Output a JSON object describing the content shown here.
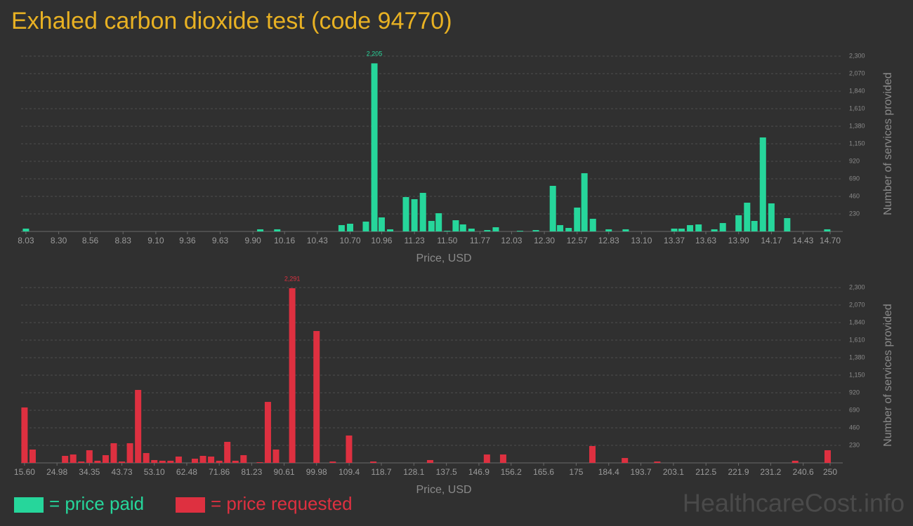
{
  "title": "Exhaled carbon dioxide test (code 94770)",
  "watermark": "HealthcareCost.info",
  "chart_data": [
    {
      "type": "bar",
      "x": [
        8.03,
        9.96,
        10.1,
        10.63,
        10.7,
        10.83,
        10.9,
        10.96,
        11.03,
        11.16,
        11.23,
        11.3,
        11.37,
        11.43,
        11.5,
        11.57,
        11.63,
        11.7,
        11.83,
        11.9,
        12.1,
        12.23,
        12.37,
        12.43,
        12.5,
        12.57,
        12.63,
        12.7,
        12.83,
        12.97,
        13.37,
        13.43,
        13.5,
        13.57,
        13.7,
        13.77,
        13.9,
        13.97,
        14.03,
        14.1,
        14.17,
        14.3,
        14.63
      ],
      "series": [
        {
          "name": "= price paid",
          "color": "#26d69b",
          "values": [
            37,
            28,
            28,
            83,
            101,
            129,
            2205,
            184,
            28,
            451,
            423,
            506,
            138,
            239,
            9,
            147,
            92,
            37,
            18,
            55,
            9,
            18,
            598,
            83,
            46,
            313,
            764,
            166,
            28,
            28,
            37,
            37,
            83,
            92,
            28,
            110,
            212,
            377,
            138,
            1233,
            368,
            175,
            28
          ],
          "value_labels": [
            null,
            null,
            null,
            null,
            null,
            null,
            "2,205",
            null,
            null,
            null,
            null,
            null,
            null,
            null,
            null,
            null,
            null,
            null,
            null,
            null,
            null,
            null,
            null,
            null,
            null,
            null,
            null,
            null,
            null,
            null,
            null,
            null,
            null,
            null,
            null,
            null,
            null,
            null,
            null,
            null,
            null,
            null,
            null
          ]
        }
      ],
      "xlabel": "Price, USD",
      "ylabel": "Number of services provided",
      "xlim": [
        7.99,
        14.7
      ],
      "xticks": [
        8.03,
        {
          "value": 8.3,
          "label": "8.30"
        },
        8.56,
        8.83,
        {
          "value": 9.1,
          "label": "9.10"
        },
        9.36,
        9.63,
        {
          "value": 9.9,
          "label": "9.90"
        },
        10.16,
        10.43,
        {
          "value": 10.7,
          "label": "10.70"
        },
        10.96,
        11.23,
        {
          "value": 11.5,
          "label": "11.50"
        },
        11.77,
        12.03,
        {
          "value": 12.3,
          "label": "12.30"
        },
        12.57,
        12.83,
        {
          "value": 13.1,
          "label": "13.10"
        },
        13.37,
        13.63,
        {
          "value": 13.9,
          "label": "13.90"
        },
        14.17,
        14.43,
        {
          "value": 14.7,
          "label": "14.70"
        }
      ],
      "ylim": [
        0,
        2300
      ],
      "yticks": [
        230,
        460,
        690,
        920,
        {
          "value": 1150,
          "label": "1,150"
        },
        {
          "value": 1380,
          "label": "1,380"
        },
        {
          "value": 1610,
          "label": "1,610"
        },
        {
          "value": 1840,
          "label": "1,840"
        },
        {
          "value": 2070,
          "label": "2,070"
        },
        {
          "value": 2300,
          "label": "2,300"
        }
      ],
      "grid": true
    },
    {
      "type": "bar",
      "x": [
        15.6,
        17.94,
        27.32,
        29.66,
        32.01,
        34.35,
        36.7,
        39.04,
        41.38,
        43.73,
        46.07,
        48.42,
        50.76,
        53.1,
        55.45,
        57.79,
        60.14,
        64.82,
        67.17,
        69.51,
        71.86,
        74.2,
        76.54,
        78.89,
        83.58,
        85.92,
        88.26,
        92.95,
        99.98,
        104.67,
        109.36,
        116.39,
        132.8,
        149.21,
        153.9,
        179.68,
        189.06,
        198.43,
        238.28,
        247.66
      ],
      "series": [
        {
          "name": "= price requested",
          "color": "#de3040",
          "values": [
            727,
            175,
            92,
            110,
            18,
            166,
            28,
            101,
            258,
            18,
            258,
            957,
            129,
            37,
            28,
            28,
            83,
            55,
            92,
            83,
            28,
            276,
            28,
            101,
            9,
            800,
            175,
            2291,
            1730,
            18,
            359,
            18,
            37,
            110,
            110,
            221,
            64,
            18,
            28,
            166
          ],
          "value_labels": [
            null,
            null,
            null,
            null,
            null,
            null,
            null,
            null,
            null,
            null,
            null,
            null,
            null,
            null,
            null,
            null,
            null,
            null,
            null,
            null,
            null,
            null,
            null,
            null,
            null,
            null,
            null,
            "2,291",
            null,
            null,
            null,
            null,
            null,
            null,
            null,
            null,
            null,
            null,
            null,
            null
          ]
        }
      ],
      "xlabel": "Price, USD",
      "ylabel": "Number of services provided",
      "xlim": [
        14.6,
        250
      ],
      "xticks": [
        {
          "value": 15.6,
          "label": "15.60"
        },
        24.98,
        34.35,
        43.73,
        {
          "value": 53.1,
          "label": "53.10"
        },
        62.48,
        71.86,
        81.23,
        90.61,
        99.98,
        109.4,
        118.7,
        128.1,
        137.5,
        146.9,
        156.2,
        165.6,
        175,
        184.4,
        193.7,
        203.1,
        212.5,
        221.9,
        231.2,
        240.6,
        250
      ],
      "ylim": [
        0,
        2300
      ],
      "yticks": [
        230,
        460,
        690,
        920,
        {
          "value": 1150,
          "label": "1,150"
        },
        {
          "value": 1380,
          "label": "1,380"
        },
        {
          "value": 1610,
          "label": "1,610"
        },
        {
          "value": 1840,
          "label": "1,840"
        },
        {
          "value": 2070,
          "label": "2,070"
        },
        {
          "value": 2300,
          "label": "2,300"
        }
      ],
      "grid": true
    }
  ]
}
